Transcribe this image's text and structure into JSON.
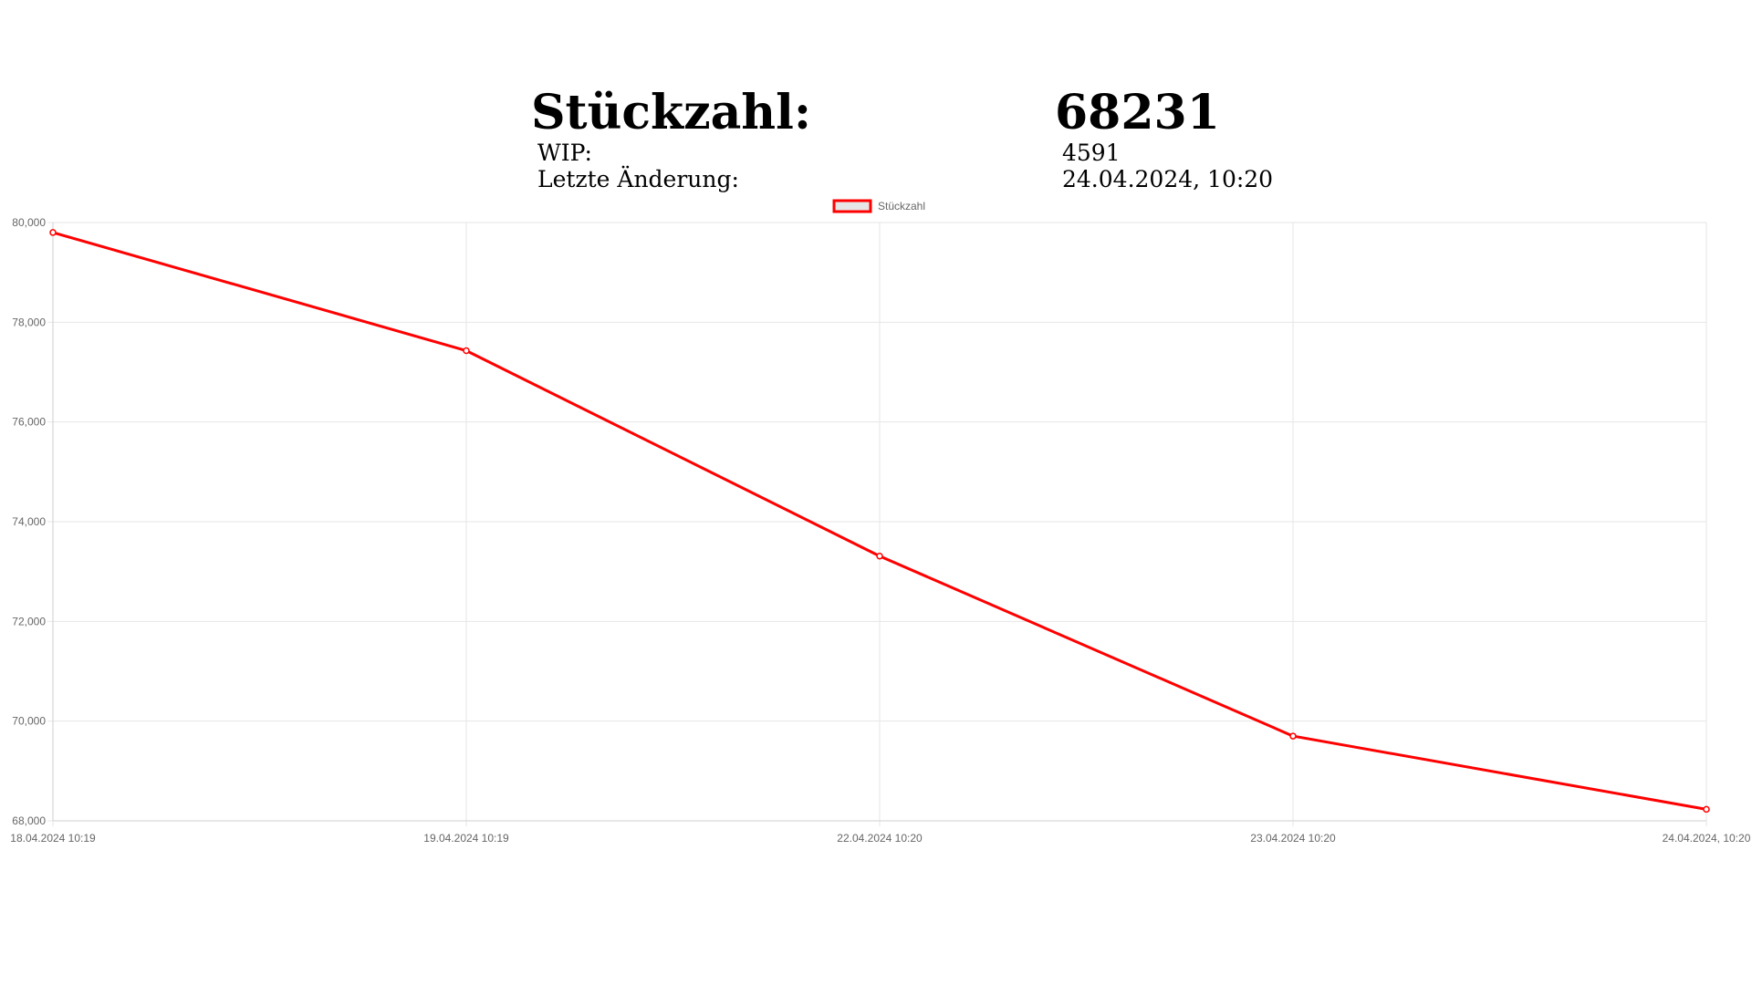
{
  "summary": {
    "count_label": "Stückzahl:",
    "count_value": "68231",
    "wip_label": "WIP:",
    "wip_value": "4591",
    "changed_label": "Letzte Änderung:",
    "changed_value": "24.04.2024, 10:20"
  },
  "chart_data": {
    "type": "line",
    "categories": [
      "18.04.2024 10:19",
      "19.04.2024 10:19",
      "22.04.2024 10:20",
      "23.04.2024 10:20",
      "24.04.2024, 10:20"
    ],
    "series": [
      {
        "name": "Stückzahl",
        "values": [
          79800,
          77430,
          73310,
          69700,
          68231
        ],
        "color": "#ff0000"
      }
    ],
    "ylim": [
      68000,
      80000
    ],
    "yticks": [
      80000,
      78000,
      76000,
      74000,
      72000,
      70000,
      68000
    ],
    "ytick_labels": [
      "80,000",
      "78,000",
      "76,000",
      "74,000",
      "72,000",
      "70,000",
      "68,000"
    ],
    "grid": true,
    "legend": "top-center",
    "grid_color": "#e6e6e6",
    "tick_color": "#666666"
  }
}
